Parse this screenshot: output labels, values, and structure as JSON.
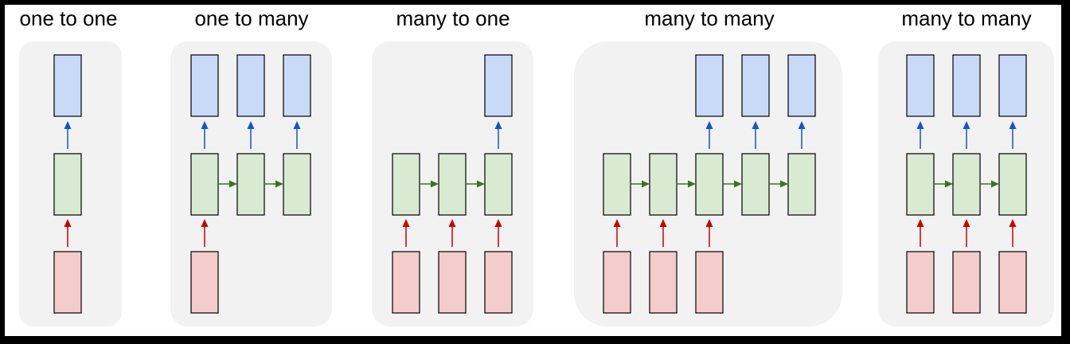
{
  "titles": {
    "one_to_one": "one to one",
    "one_to_many": "one to many",
    "many_to_one": "many to one",
    "many_to_many_1": "many to many",
    "many_to_many_2": "many to many"
  },
  "colors": {
    "output_box": "#c9daf8",
    "hidden_box": "#d9ead3",
    "input_box": "#f4cccc",
    "output_arrow": "#1155cc",
    "input_arrow": "#cc0000",
    "recurrent_arrow": "#38761d",
    "panel_background": "#f2f2f2"
  }
}
